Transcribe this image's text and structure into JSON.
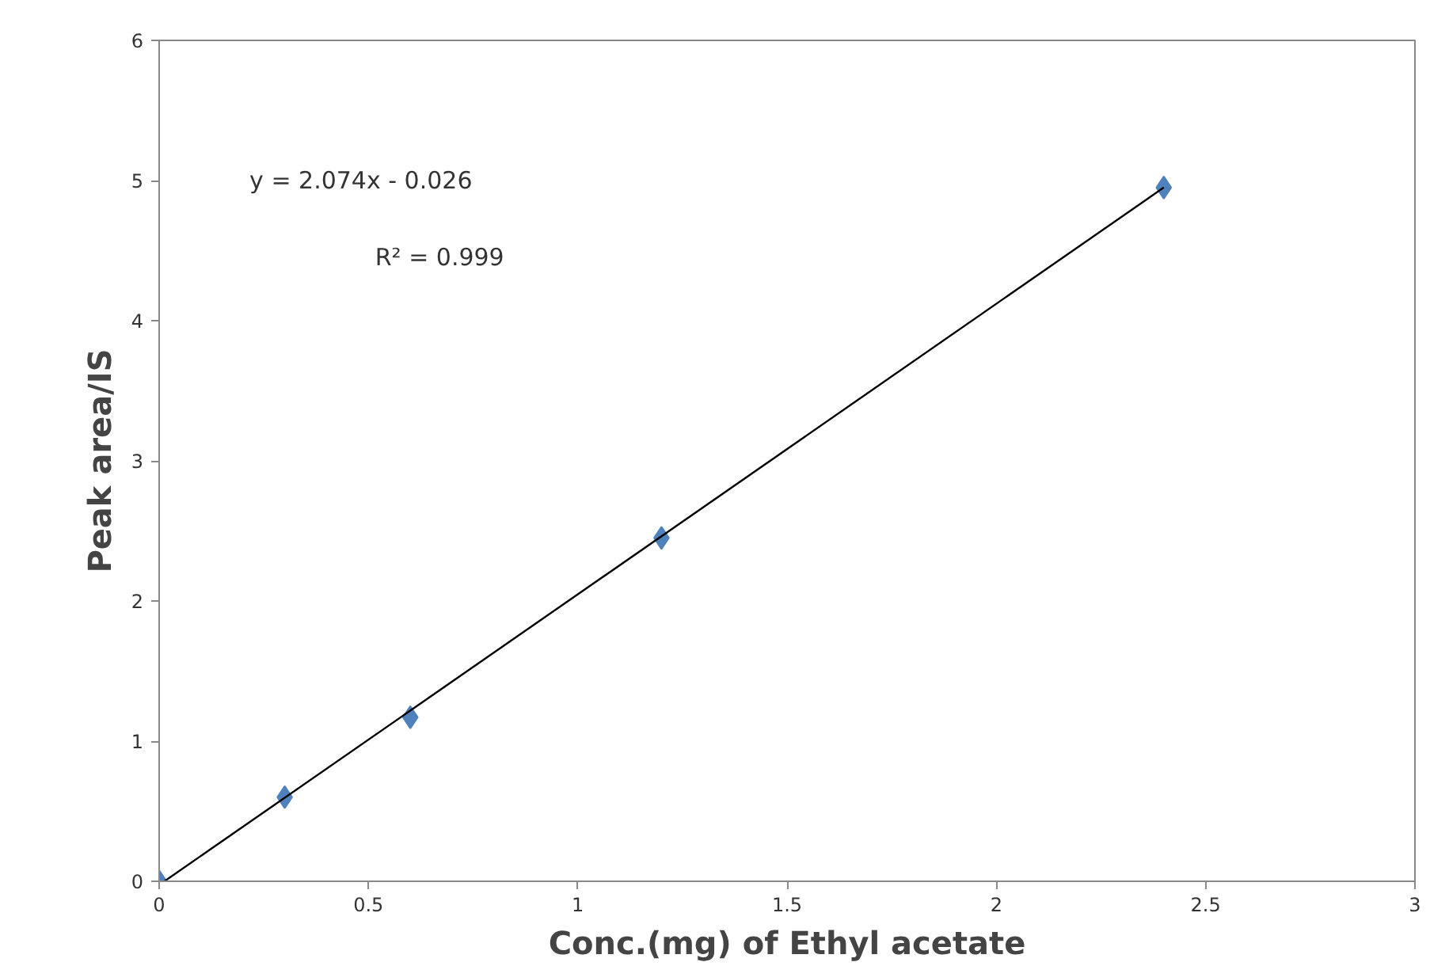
{
  "chart_data": {
    "type": "scatter",
    "xlabel": "Conc.(mg) of Ethyl acetate",
    "ylabel": "Peak area/IS",
    "series": [
      {
        "color": "#4f81bd",
        "marker": "diamond",
        "x": [
          0,
          0.3,
          0.6,
          1.2,
          2.4
        ],
        "values": [
          0,
          0.6,
          1.17,
          2.45,
          4.95
        ]
      },
      {
        "type": "line",
        "color": "#000000",
        "line_style": "solid",
        "x": [
          0.0125,
          2.4
        ],
        "values": [
          0,
          4.95
        ]
      }
    ],
    "annotations": [
      "y = 2.074x  -  0.026",
      "R² = 0.999"
    ],
    "xlim": [
      0,
      3
    ],
    "xticks": [
      0,
      0.5,
      1,
      1.5,
      2,
      2.5,
      3
    ],
    "ylim": [
      0,
      6
    ],
    "yticks": [
      0,
      1,
      2,
      3,
      4,
      5,
      6
    ],
    "grid": false
  }
}
